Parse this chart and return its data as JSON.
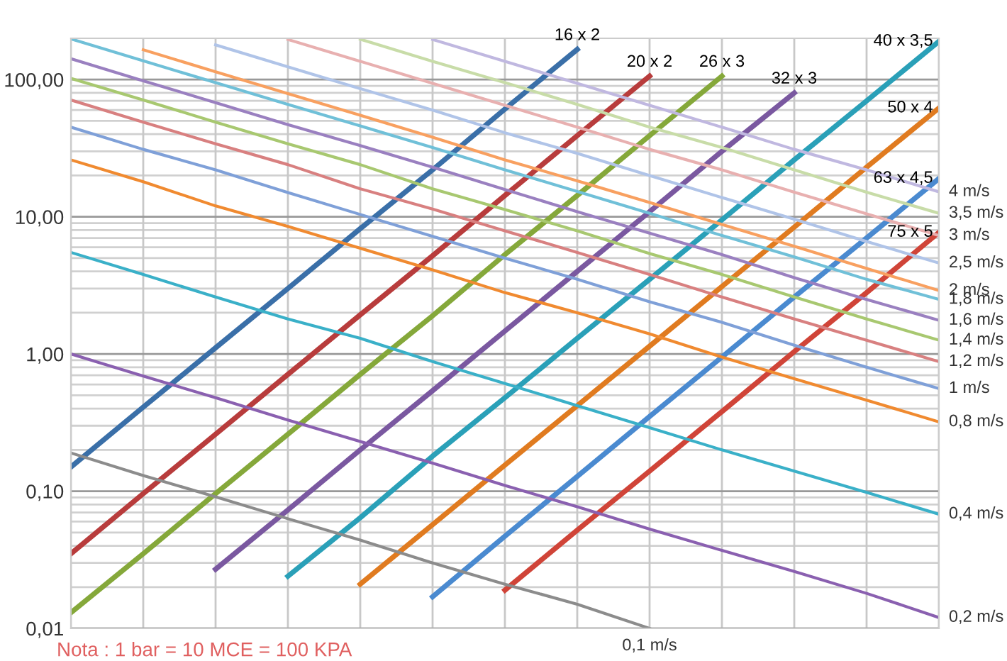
{
  "chart_data": {
    "type": "line",
    "log": "y",
    "grid": true,
    "legend": false,
    "tick_labels": "y",
    "marker": "none",
    "line_style": "solid",
    "categories": [
      null,
      null,
      null,
      null,
      null,
      null,
      null,
      null,
      null,
      null,
      null,
      null,
      null
    ],
    "ylim": [
      0.01,
      200
    ],
    "yticks": [
      {
        "value": 0.01,
        "label": "0,01"
      },
      {
        "value": 0.1,
        "label": "0,10"
      },
      {
        "value": 1,
        "label": "1,00"
      },
      {
        "value": 10,
        "label": "10,00"
      },
      {
        "value": 100,
        "label": "100,00"
      }
    ],
    "annotations": [
      "Nota : 1 bar = 10 MCE = 100 KPA"
    ],
    "series": [
      {
        "name": "16 x 2",
        "color": "#3a6fa8",
        "values": [
          0.15,
          0.41,
          1.11,
          3.0,
          8.2,
          22,
          61,
          166,
          null,
          null,
          null,
          null,
          null
        ]
      },
      {
        "name": "20 x 2",
        "color": "#b83c3c",
        "values": [
          0.035,
          0.096,
          0.26,
          0.71,
          1.93,
          5.2,
          14.3,
          39,
          106,
          null,
          null,
          null,
          null
        ]
      },
      {
        "name": "26 x 3",
        "color": "#85a83a",
        "values": [
          0.013,
          0.035,
          0.096,
          0.26,
          0.71,
          1.9,
          5.3,
          14.3,
          39,
          106,
          null,
          null,
          null
        ]
      },
      {
        "name": "32 x 3",
        "color": "#7a58a0",
        "values": [
          null,
          null,
          0.027,
          0.073,
          0.2,
          0.54,
          1.47,
          4.0,
          10.9,
          30,
          80,
          null,
          null
        ]
      },
      {
        "name": "40 x 3,5",
        "color": "#2aa0b8",
        "values": [
          null,
          null,
          null,
          0.024,
          0.064,
          0.18,
          0.48,
          1.3,
          3.5,
          9.5,
          26,
          70,
          190
        ]
      },
      {
        "name": "50 x 4",
        "color": "#e07b20",
        "values": [
          null,
          null,
          null,
          null,
          0.021,
          0.057,
          0.155,
          0.42,
          1.14,
          3.1,
          8.4,
          23,
          62
        ]
      },
      {
        "name": "63 x 4,5",
        "color": "#4a8ad0",
        "values": [
          null,
          null,
          null,
          null,
          null,
          0.017,
          0.047,
          0.128,
          0.35,
          0.95,
          2.6,
          7.0,
          19
        ]
      },
      {
        "name": "75 x 5",
        "color": "#d04438",
        "values": [
          null,
          null,
          null,
          null,
          null,
          null,
          0.019,
          0.052,
          0.14,
          0.38,
          1.04,
          2.8,
          7.7
        ]
      },
      {
        "name": "0,1 m/s",
        "color": "#8c8c8c",
        "values": [
          0.19,
          0.13,
          0.091,
          0.063,
          0.044,
          0.03,
          0.021,
          0.015,
          0.01,
          null,
          null,
          null,
          null
        ]
      },
      {
        "name": "0,2 m/s",
        "color": "#8a60b0",
        "values": [
          1.0,
          0.69,
          0.48,
          0.33,
          0.23,
          0.16,
          0.11,
          0.077,
          0.053,
          0.037,
          0.026,
          0.018,
          0.012
        ]
      },
      {
        "name": "0,4 m/s",
        "color": "#3ab0c8",
        "values": [
          5.5,
          3.8,
          2.6,
          1.8,
          1.3,
          0.88,
          0.61,
          0.42,
          0.29,
          0.2,
          0.14,
          0.098,
          0.068
        ]
      },
      {
        "name": "0,8 m/s",
        "color": "#f08a30",
        "values": [
          26,
          18,
          12,
          8.5,
          5.9,
          4.1,
          2.8,
          2.0,
          1.4,
          0.95,
          0.66,
          0.46,
          0.32
        ]
      },
      {
        "name": "1 m/s",
        "color": "#7fa0d8",
        "values": [
          45,
          31,
          22,
          15,
          10.4,
          7.2,
          5.0,
          3.5,
          2.4,
          1.7,
          1.16,
          0.8,
          0.56
        ]
      },
      {
        "name": "1,2 m/s",
        "color": "#d88080",
        "values": [
          71,
          49,
          34,
          24,
          16,
          11.4,
          7.9,
          5.5,
          3.8,
          2.6,
          1.8,
          1.26,
          0.88
        ]
      },
      {
        "name": "1,4 m/s",
        "color": "#a8c870",
        "values": [
          102,
          71,
          49,
          34,
          24,
          16,
          11.3,
          7.9,
          5.4,
          3.8,
          2.6,
          1.8,
          1.26
        ]
      },
      {
        "name": "1,6 m/s",
        "color": "#9a80c0",
        "values": [
          142,
          98,
          68,
          47,
          33,
          23,
          15.8,
          10.9,
          7.6,
          5.3,
          3.6,
          2.5,
          1.76
        ]
      },
      {
        "name": "1,8 m/s",
        "color": "#70c0d8",
        "values": [
          198,
          137,
          95,
          66,
          46,
          32,
          22,
          15.3,
          10.6,
          7.3,
          5.1,
          3.5,
          2.5
        ]
      },
      {
        "name": "2 m/s",
        "color": "#f8a060",
        "values": [
          null,
          165,
          114,
          79,
          55,
          38,
          26,
          18.3,
          12.7,
          8.8,
          6.1,
          4.2,
          2.9
        ]
      },
      {
        "name": "2,5 m/s",
        "color": "#b0c4e8",
        "values": [
          null,
          null,
          179,
          124,
          86,
          60,
          41,
          29,
          20,
          13.8,
          9.6,
          6.6,
          4.6
        ]
      },
      {
        "name": "3 m/s",
        "color": "#e8b0b0",
        "values": [
          null,
          null,
          null,
          196,
          136,
          94,
          65,
          45,
          31,
          22,
          15.1,
          10.5,
          7.3
        ]
      },
      {
        "name": "3,5 m/s",
        "color": "#c8dca8",
        "values": [
          null,
          null,
          null,
          null,
          197,
          136,
          95,
          66,
          45,
          32,
          22,
          15.1,
          10.6
        ]
      },
      {
        "name": "4 m/s",
        "color": "#c0b8e0",
        "values": [
          null,
          null,
          null,
          null,
          null,
          196,
          136,
          94,
          65,
          45,
          31,
          22,
          15.2
        ]
      }
    ]
  }
}
